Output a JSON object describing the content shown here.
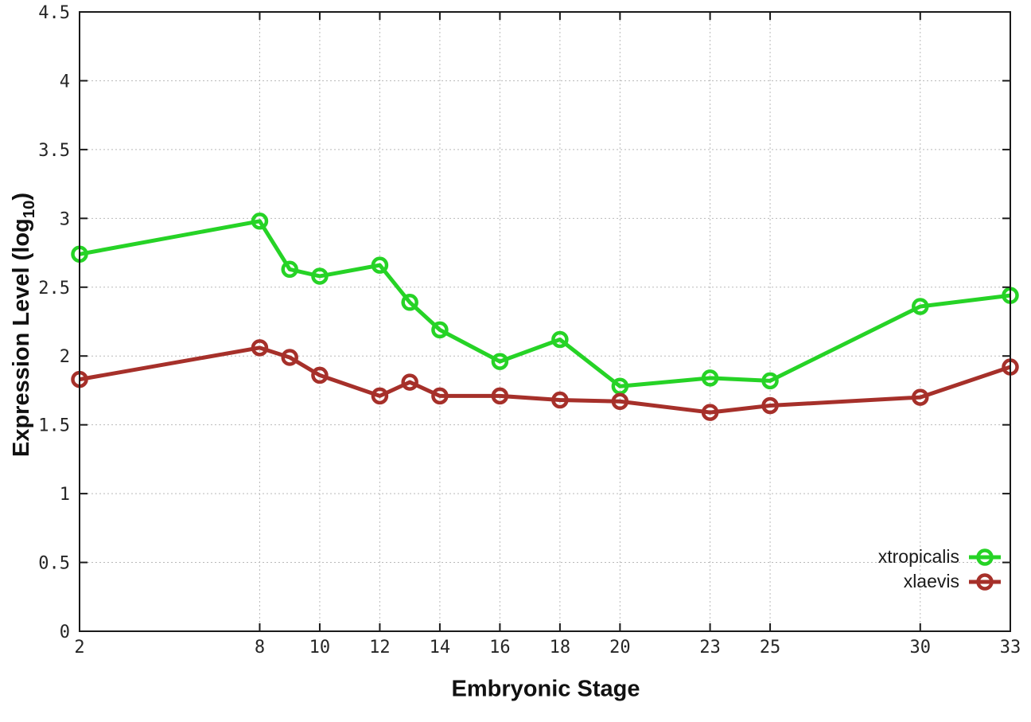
{
  "figure": {
    "xlabel": "Embryonic Stage",
    "ylabel": {
      "prefix": "Expression Level (log",
      "subscript": "10",
      "suffix": ")"
    },
    "background": "#ffffff",
    "border_color": "#1a1a1a",
    "grid_color": "#b9b9b9"
  },
  "chart_data": {
    "type": "line",
    "title": "",
    "xlabel": "Embryonic Stage",
    "ylabel": "Expression Level (log10)",
    "x": [
      2,
      8,
      9,
      10,
      12,
      13,
      14,
      16,
      18,
      20,
      23,
      25,
      30,
      33
    ],
    "series": [
      {
        "name": "xtropicalis",
        "color": "#26d326",
        "marker": "open-circle",
        "values": [
          2.74,
          2.98,
          2.63,
          2.58,
          2.66,
          2.39,
          2.19,
          1.96,
          2.12,
          1.78,
          1.84,
          1.82,
          2.36,
          2.44
        ]
      },
      {
        "name": "xlaevis",
        "color": "#a6302a",
        "marker": "open-circle",
        "values": [
          1.83,
          2.06,
          1.99,
          1.86,
          1.71,
          1.81,
          1.71,
          1.71,
          1.68,
          1.67,
          1.59,
          1.64,
          1.7,
          1.92
        ]
      }
    ],
    "xlim": [
      2,
      33
    ],
    "ylim": [
      0,
      4.5
    ],
    "xticks": {
      "values": [
        2,
        8,
        10,
        12,
        14,
        16,
        18,
        20,
        23,
        25,
        30,
        33
      ],
      "labels": [
        "2",
        "8",
        "10",
        "12",
        "14",
        "16",
        "18",
        "20",
        "23",
        "25",
        "30",
        "33"
      ]
    },
    "yticks": {
      "values": [
        0,
        0.5,
        1,
        1.5,
        2,
        2.5,
        3,
        3.5,
        4,
        4.5
      ],
      "labels": [
        "0",
        "0.5",
        "1",
        "1.5",
        "2",
        "2.5",
        "3",
        "3.5",
        "4",
        "4.5"
      ]
    },
    "grid": true,
    "legend_position": "bottom-right"
  }
}
